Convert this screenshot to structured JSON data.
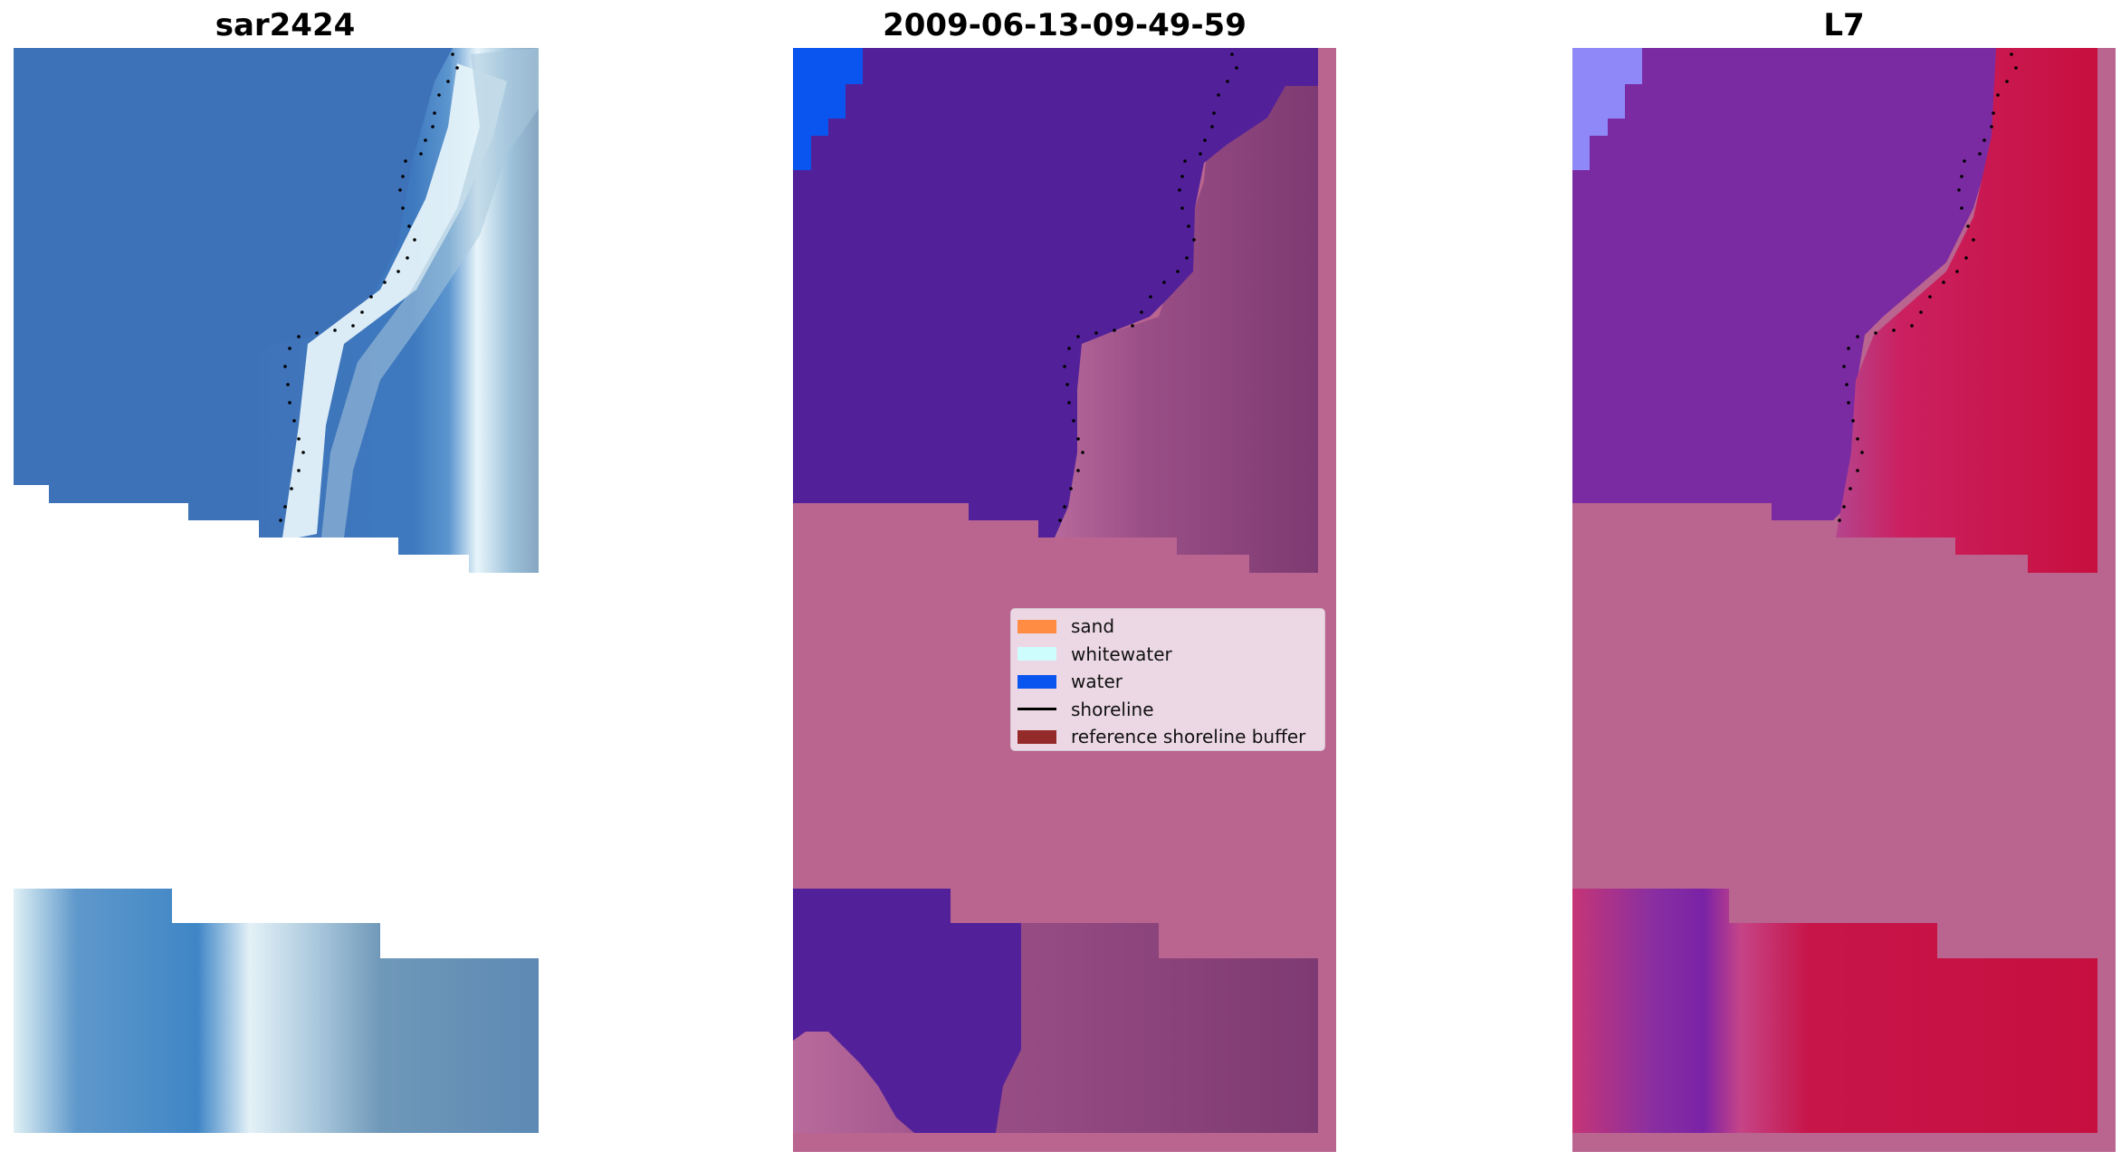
{
  "panels": [
    {
      "title": "sar2424",
      "icon": "rgb-image-icon"
    },
    {
      "title": "2009-06-13-09-49-59",
      "icon": "classified-image-icon"
    },
    {
      "title": "L7",
      "icon": "mndwi-image-icon"
    }
  ],
  "legend": {
    "items": [
      {
        "label": "sand",
        "color": "#ff8c42",
        "kind": "patch"
      },
      {
        "label": "whitewater",
        "color": "#cdfdfd",
        "kind": "patch"
      },
      {
        "label": "water",
        "color": "#0a55f0",
        "kind": "patch"
      },
      {
        "label": "shoreline",
        "color": "#000000",
        "kind": "line"
      },
      {
        "label": "reference shoreline buffer",
        "color": "#952a2a",
        "kind": "patch"
      }
    ]
  },
  "colors": {
    "background": "#ffffff",
    "buffer_pink": "#ba6490",
    "water_class": "#52219a",
    "deep_water_blue": "#0a55f0",
    "rgb_water": "#3f73b9",
    "rgb_surf": "#e6f4fb",
    "rgb_land": "#8aa6c0",
    "mndwi_water": "#7a2ca1",
    "mndwi_land": "#c8103f",
    "mndwi_bright": "#8f88f8"
  }
}
